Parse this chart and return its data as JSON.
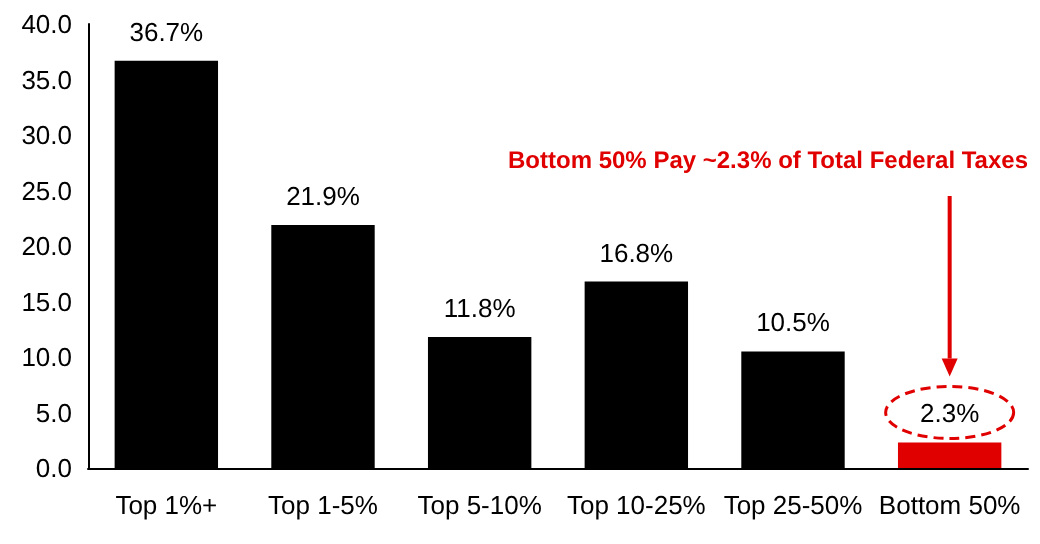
{
  "chart_data": {
    "type": "bar",
    "categories": [
      "Top 1%+",
      "Top 1-5%",
      "Top 5-10%",
      "Top 10-25%",
      "Top 25-50%",
      "Bottom 50%"
    ],
    "values": [
      36.7,
      21.9,
      11.8,
      16.8,
      10.5,
      2.3
    ],
    "colors": [
      "#000000",
      "#000000",
      "#000000",
      "#000000",
      "#000000",
      "#e00000"
    ],
    "value_labels": [
      "36.7%",
      "21.9%",
      "11.8%",
      "16.8%",
      "10.5%",
      "2.3%"
    ],
    "ylim": [
      0,
      40
    ],
    "yticks": [
      {
        "value": 0,
        "label": "0.0"
      },
      {
        "value": 5,
        "label": "5.0"
      },
      {
        "value": 10,
        "label": "10.0"
      },
      {
        "value": 15,
        "label": "15.0"
      },
      {
        "value": 20,
        "label": "20.0"
      },
      {
        "value": 25,
        "label": "25.0"
      },
      {
        "value": 30,
        "label": "30.0"
      },
      {
        "value": 35,
        "label": "35.0"
      },
      {
        "value": 40,
        "label": "40.0"
      }
    ],
    "annotations": [
      "Bottom 50% Pay ~2.3% of Total Federal Taxes"
    ],
    "grid": false
  }
}
